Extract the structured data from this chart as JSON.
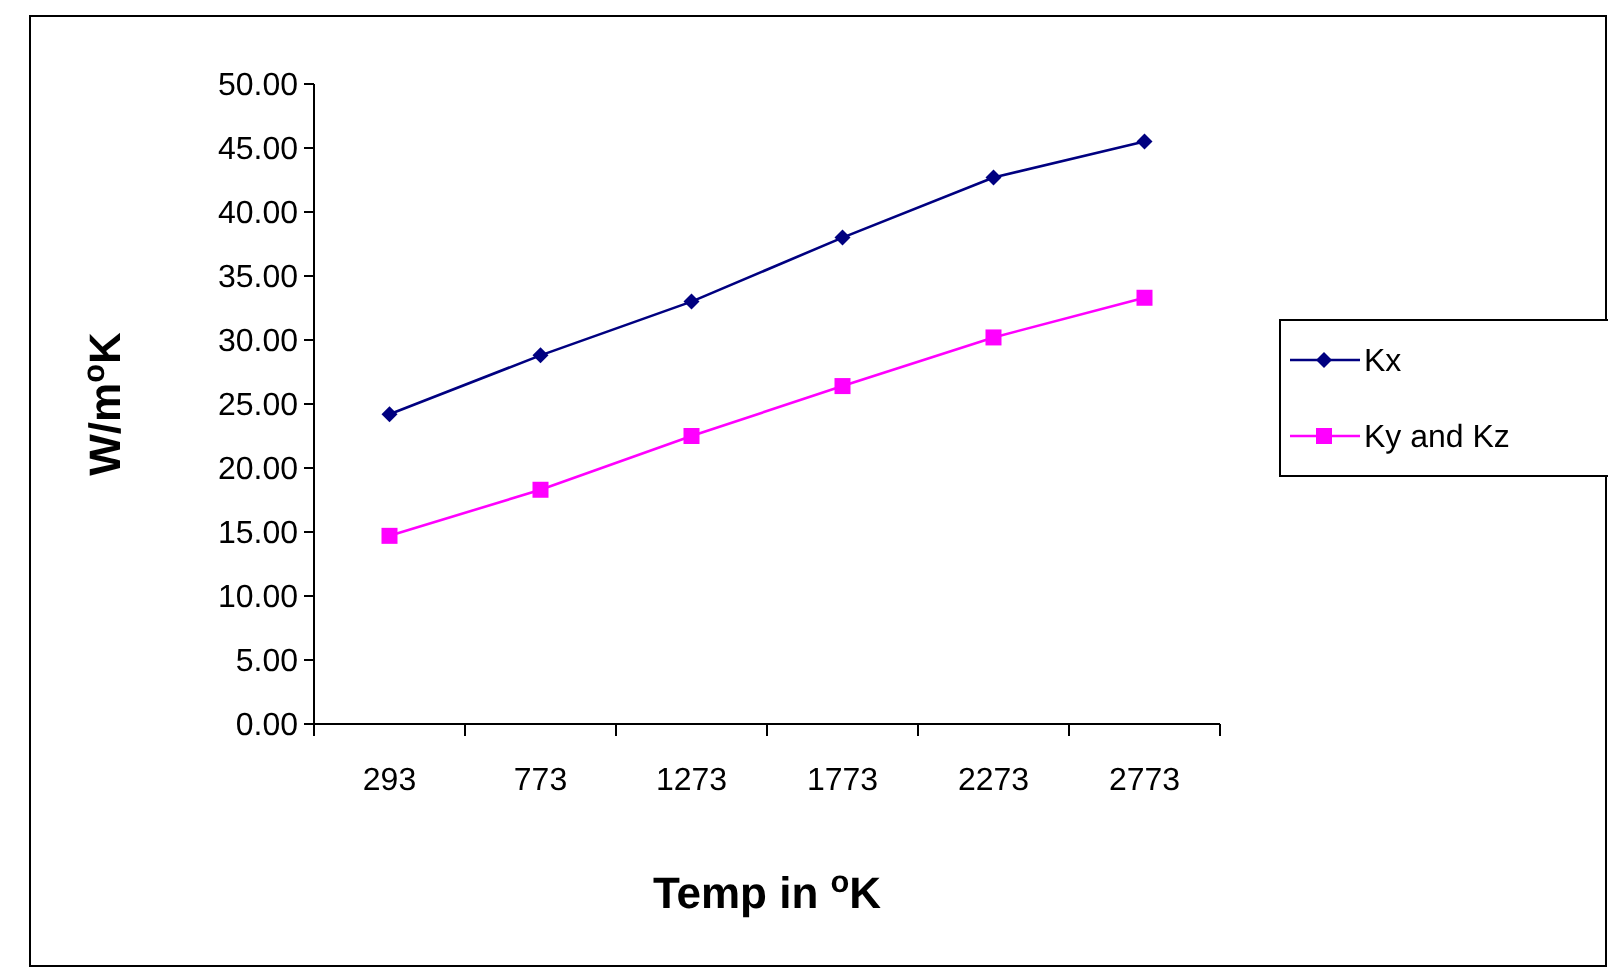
{
  "chart_data": {
    "type": "line",
    "xlabel": "Temp in $^{o}$K",
    "ylabel": "W/m$^{o}$K",
    "categories": [
      "293",
      "773",
      "1273",
      "1773",
      "2273",
      "2773"
    ],
    "series": [
      {
        "name": "Kx",
        "color": "#000080",
        "marker": "diamond",
        "values": [
          24.2,
          28.8,
          33.0,
          38.0,
          42.7,
          45.5
        ]
      },
      {
        "name": "Ky and Kz",
        "color": "#ff00ff",
        "marker": "square",
        "values": [
          14.7,
          18.3,
          22.5,
          26.4,
          30.2,
          33.3
        ]
      }
    ],
    "ylim": [
      0,
      50
    ],
    "yticks": [
      {
        "value": 0,
        "label": "0.00"
      },
      {
        "value": 5,
        "label": "5.00"
      },
      {
        "value": 10,
        "label": "10.00"
      },
      {
        "value": 15,
        "label": "15.00"
      },
      {
        "value": 20,
        "label": "20.00"
      },
      {
        "value": 25,
        "label": "25.00"
      },
      {
        "value": 30,
        "label": "30.00"
      },
      {
        "value": 35,
        "label": "35.00"
      },
      {
        "value": 40,
        "label": "40.00"
      },
      {
        "value": 45,
        "label": "45.00"
      },
      {
        "value": 50,
        "label": "50.00"
      }
    ],
    "legend": "right",
    "line_style": "solid"
  }
}
